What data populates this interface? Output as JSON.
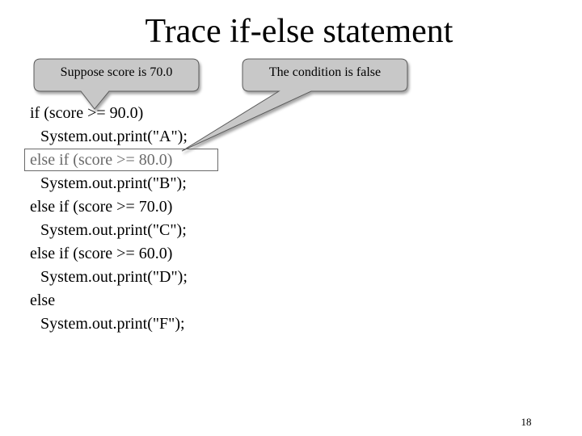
{
  "slide": {
    "title": "Trace if-else statement",
    "page_number": "18"
  },
  "callouts": [
    {
      "text": "Suppose score is 70.0"
    },
    {
      "text": "The condition is false"
    }
  ],
  "code": {
    "lines": [
      "if (score >= 90.0)",
      "System.out.print(\"A\");",
      "else if (score >= 80.0)",
      "System.out.print(\"B\");",
      "else if (score >= 70.0)",
      "System.out.print(\"C\");",
      "else if (score >= 60.0)",
      "System.out.print(\"D\");",
      "else",
      "System.out.print(\"F\");"
    ],
    "highlighted_line": 3
  },
  "colors": {
    "callout_fill": "#c8c8c8",
    "callout_stroke": "#5a5a5a",
    "highlight": "#6a6a6a"
  }
}
